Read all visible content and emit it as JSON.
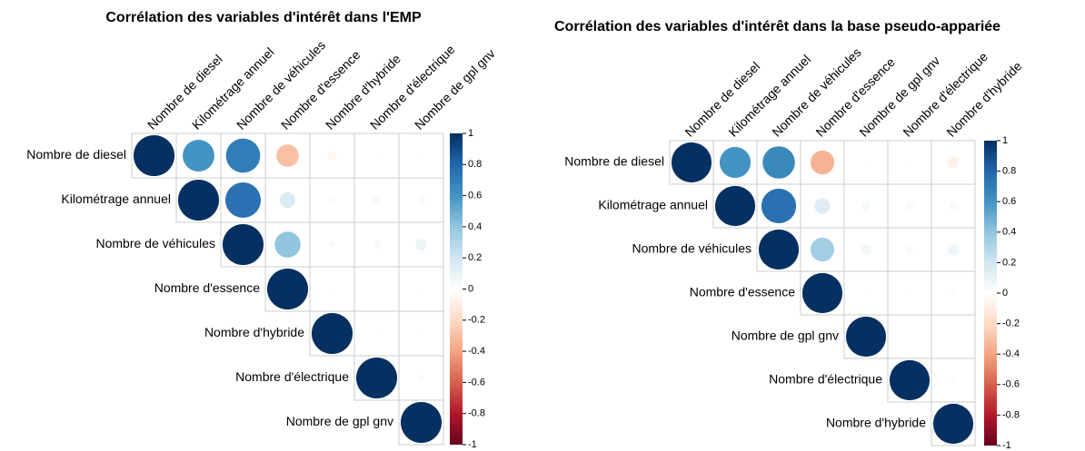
{
  "chart_data": [
    {
      "type": "corrplot",
      "title": "Corrélation des variables d'intérêt dans l'EMP",
      "variables": [
        "Nombre de diesel",
        "Kilométrage annuel",
        "Nombre de véhicules",
        "Nombre d'essence",
        "Nombre d'hybride",
        "Nombre d'électrique",
        "Nombre de gpl gnv"
      ],
      "matrix": [
        [
          1,
          0.6,
          0.7,
          -0.3,
          -0.05,
          0.01,
          0.02
        ],
        [
          null,
          1,
          0.75,
          0.15,
          0.03,
          0.04,
          0.04
        ],
        [
          null,
          null,
          1,
          0.4,
          0.03,
          0.04,
          0.08
        ],
        [
          null,
          null,
          null,
          1,
          0.01,
          0.01,
          0.01
        ],
        [
          null,
          null,
          null,
          null,
          1,
          0.01,
          0.01
        ],
        [
          null,
          null,
          null,
          null,
          null,
          1,
          0.03
        ],
        [
          null,
          null,
          null,
          null,
          null,
          null,
          1
        ]
      ],
      "ylim": [
        -1,
        1
      ],
      "yticks": [
        1,
        0.8,
        0.6,
        0.4,
        0.2,
        0,
        -0.2,
        -0.4,
        -0.6,
        -0.8,
        -1
      ],
      "colors": [
        "#67001F",
        "#B2182B",
        "#D6604D",
        "#F4A582",
        "#FDDBC7",
        "#FFFFFF",
        "#D1E5F0",
        "#92C5DE",
        "#4393C3",
        "#2166AC",
        "#053061"
      ]
    },
    {
      "type": "corrplot",
      "title": "Corrélation des variables d'intérêt dans la base pseudo-appariée",
      "variables": [
        "Nombre de diesel",
        "Kilométrage annuel",
        "Nombre de véhicules",
        "Nombre d'essence",
        "Nombre de gpl gnv",
        "Nombre d'électrique",
        "Nombre d'hybride"
      ],
      "matrix": [
        [
          1,
          0.6,
          0.65,
          -0.35,
          0.01,
          0.01,
          -0.08
        ],
        [
          null,
          1,
          0.75,
          0.15,
          0.05,
          0.04,
          0.04
        ],
        [
          null,
          null,
          1,
          0.35,
          0.06,
          0.04,
          0.08
        ],
        [
          null,
          null,
          null,
          1,
          0.01,
          0.01,
          0.02
        ],
        [
          null,
          null,
          null,
          null,
          1,
          0.01,
          0.01
        ],
        [
          null,
          null,
          null,
          null,
          null,
          1,
          0.02
        ],
        [
          null,
          null,
          null,
          null,
          null,
          null,
          1
        ]
      ],
      "ylim": [
        -1,
        1
      ],
      "yticks": [
        1,
        0.8,
        0.6,
        0.4,
        0.2,
        0,
        -0.2,
        -0.4,
        -0.6,
        -0.8,
        -1
      ],
      "colors": [
        "#67001F",
        "#B2182B",
        "#D6604D",
        "#F4A582",
        "#FDDBC7",
        "#FFFFFF",
        "#D1E5F0",
        "#92C5DE",
        "#4393C3",
        "#2166AC",
        "#053061"
      ]
    }
  ]
}
